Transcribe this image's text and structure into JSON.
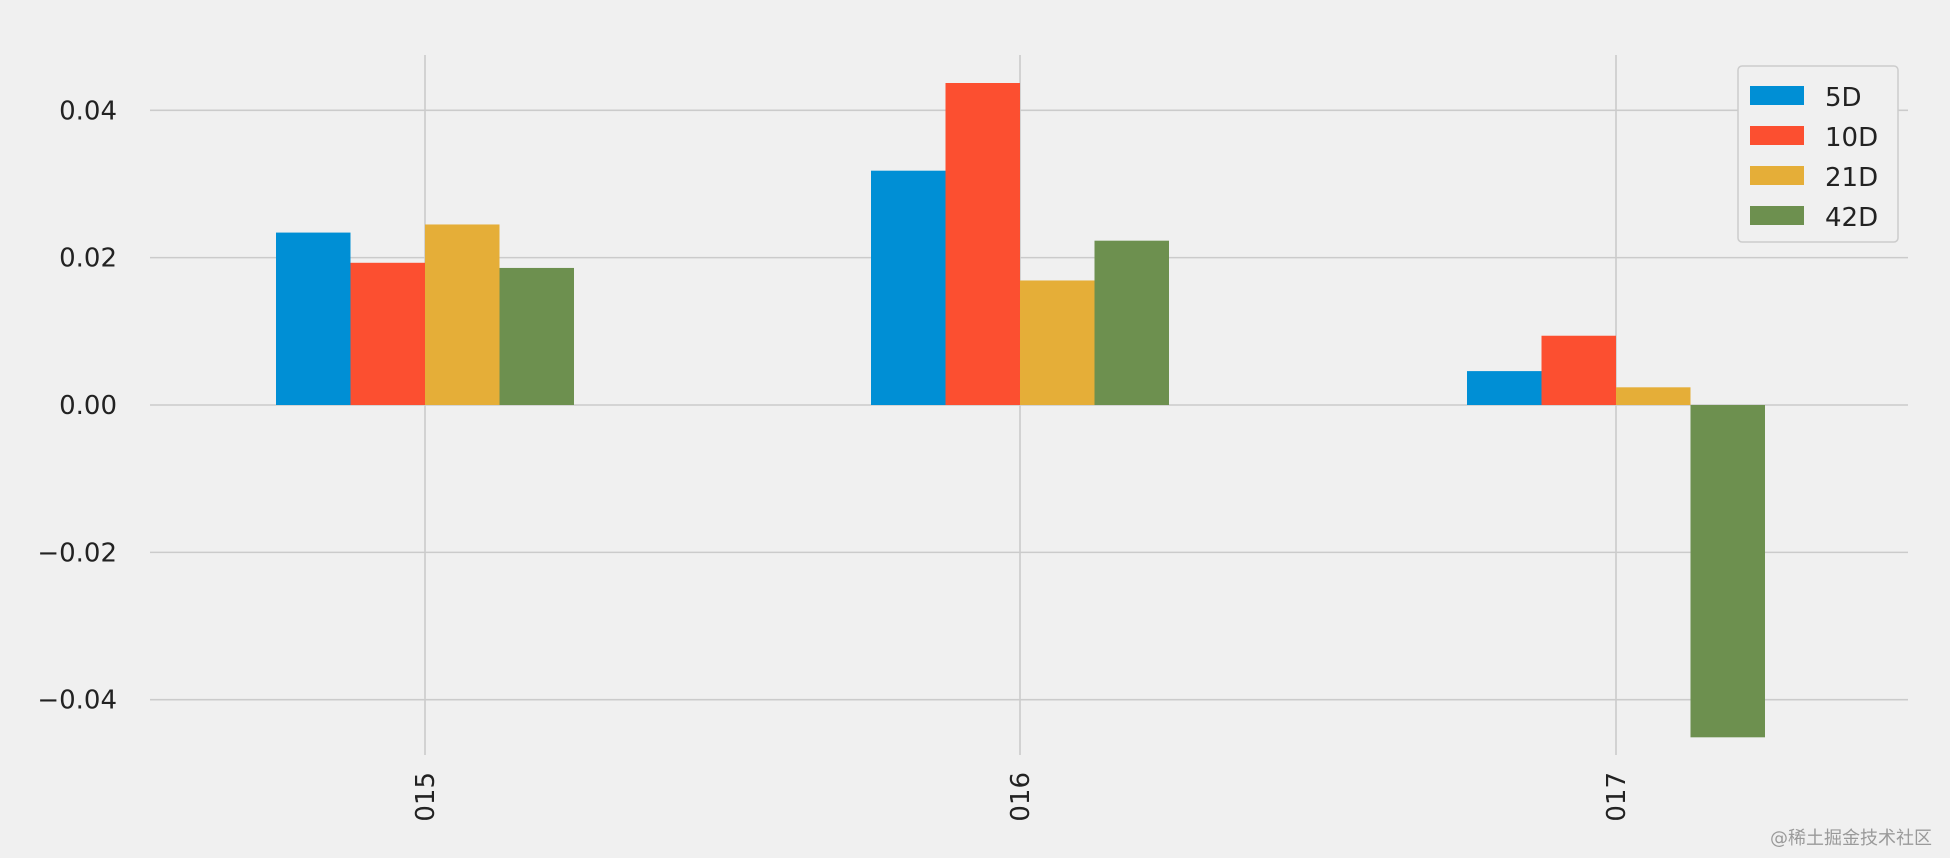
{
  "chart_data": {
    "type": "bar",
    "categories": [
      "015",
      "016",
      "017"
    ],
    "series": [
      {
        "name": "5D",
        "color": "#008fd5",
        "values": [
          0.0234,
          0.0318,
          0.0046
        ]
      },
      {
        "name": "10D",
        "color": "#fc4f30",
        "values": [
          0.0193,
          0.0437,
          0.0094
        ]
      },
      {
        "name": "21D",
        "color": "#e5ae38",
        "values": [
          0.0245,
          0.0169,
          0.0024
        ]
      },
      {
        "name": "42D",
        "color": "#6d904f",
        "values": [
          0.0186,
          0.0223,
          -0.0451
        ]
      }
    ],
    "yticks": [
      -0.04,
      -0.02,
      0.0,
      0.02,
      0.04
    ],
    "ytick_labels": [
      "−0.04",
      "−0.02",
      "0.00",
      "0.02",
      "0.04"
    ],
    "ylim": [
      -0.0475,
      0.0475
    ],
    "grid": true,
    "legend_position": "top-right",
    "xtick_rotation": "vertical"
  },
  "watermark": "@稀土掘金技术社区"
}
